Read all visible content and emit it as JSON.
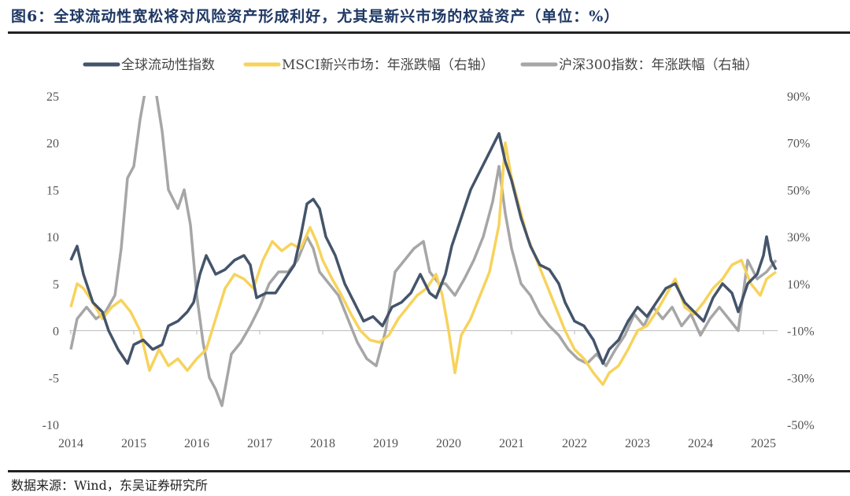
{
  "title": "图6：全球流动性宽松将对风险资产形成利好，尤其是新兴市场的权益资产（单位：%）",
  "source": "数据来源：Wind，东吴证券研究所",
  "chart_data": {
    "type": "line",
    "title": "图6：全球流动性宽松将对风险资产形成利好，尤其是新兴市场的权益资产（单位：%）",
    "legend_position": "top",
    "grid": false,
    "x_ticks": [
      "2014",
      "2015",
      "2016",
      "2017",
      "2018",
      "2019",
      "2020",
      "2021",
      "2022",
      "2023",
      "2024",
      "2025"
    ],
    "xlim": [
      2014,
      2025.25
    ],
    "left_axis": {
      "ylim": [
        -10,
        25
      ],
      "ticks": [
        "-10",
        "-5",
        "0",
        "5",
        "10",
        "15",
        "20",
        "25"
      ]
    },
    "right_axis": {
      "ylim": [
        -50,
        90
      ],
      "ticks": [
        "-50%",
        "-30%",
        "-10%",
        "10%",
        "30%",
        "50%",
        "70%",
        "90%"
      ]
    },
    "series": [
      {
        "name": "全球流动性指数",
        "axis": "left",
        "color": "#44546a",
        "points": [
          [
            2014.0,
            7.5
          ],
          [
            2014.1,
            9
          ],
          [
            2014.2,
            6
          ],
          [
            2014.35,
            3
          ],
          [
            2014.5,
            2
          ],
          [
            2014.6,
            0
          ],
          [
            2014.75,
            -2
          ],
          [
            2014.9,
            -3.5
          ],
          [
            2015.0,
            -1.5
          ],
          [
            2015.15,
            -1
          ],
          [
            2015.3,
            -2
          ],
          [
            2015.45,
            -1.5
          ],
          [
            2015.55,
            0.5
          ],
          [
            2015.7,
            1
          ],
          [
            2015.85,
            2
          ],
          [
            2015.95,
            3
          ],
          [
            2016.05,
            6
          ],
          [
            2016.15,
            8
          ],
          [
            2016.3,
            6
          ],
          [
            2016.45,
            6.5
          ],
          [
            2016.6,
            7.5
          ],
          [
            2016.75,
            8
          ],
          [
            2016.85,
            7
          ],
          [
            2016.95,
            3.5
          ],
          [
            2017.1,
            4
          ],
          [
            2017.25,
            4
          ],
          [
            2017.4,
            5.5
          ],
          [
            2017.55,
            7
          ],
          [
            2017.65,
            10
          ],
          [
            2017.75,
            13.5
          ],
          [
            2017.85,
            14
          ],
          [
            2017.95,
            13
          ],
          [
            2018.05,
            10
          ],
          [
            2018.2,
            8
          ],
          [
            2018.35,
            5
          ],
          [
            2018.5,
            3
          ],
          [
            2018.65,
            1
          ],
          [
            2018.8,
            1.5
          ],
          [
            2018.95,
            0.5
          ],
          [
            2019.1,
            2.5
          ],
          [
            2019.25,
            3
          ],
          [
            2019.4,
            4
          ],
          [
            2019.55,
            6
          ],
          [
            2019.7,
            4
          ],
          [
            2019.8,
            3.5
          ],
          [
            2019.95,
            6
          ],
          [
            2020.05,
            9
          ],
          [
            2020.2,
            12
          ],
          [
            2020.35,
            15
          ],
          [
            2020.5,
            17
          ],
          [
            2020.65,
            19
          ],
          [
            2020.8,
            21
          ],
          [
            2020.9,
            18
          ],
          [
            2021.0,
            16
          ],
          [
            2021.15,
            12
          ],
          [
            2021.3,
            9
          ],
          [
            2021.45,
            7
          ],
          [
            2021.6,
            6.5
          ],
          [
            2021.75,
            5
          ],
          [
            2021.85,
            3
          ],
          [
            2022.0,
            1
          ],
          [
            2022.15,
            0.5
          ],
          [
            2022.3,
            -1
          ],
          [
            2022.45,
            -3.5
          ],
          [
            2022.55,
            -2
          ],
          [
            2022.7,
            -1
          ],
          [
            2022.85,
            1
          ],
          [
            2023.0,
            2.5
          ],
          [
            2023.15,
            1.5
          ],
          [
            2023.3,
            3
          ],
          [
            2023.45,
            4.5
          ],
          [
            2023.6,
            5
          ],
          [
            2023.75,
            3
          ],
          [
            2023.9,
            2
          ],
          [
            2024.05,
            1
          ],
          [
            2024.2,
            3.5
          ],
          [
            2024.35,
            5
          ],
          [
            2024.5,
            4
          ],
          [
            2024.6,
            2
          ],
          [
            2024.75,
            5
          ],
          [
            2024.9,
            6
          ],
          [
            2025.0,
            8
          ],
          [
            2025.05,
            10
          ],
          [
            2025.12,
            7.5
          ],
          [
            2025.2,
            6.5
          ]
        ]
      },
      {
        "name": "MSCI新兴市场：年涨跌幅（右轴）",
        "axis": "right",
        "color": "#f7d35c",
        "points": [
          [
            2014.0,
            0
          ],
          [
            2014.1,
            10
          ],
          [
            2014.2,
            8
          ],
          [
            2014.35,
            2
          ],
          [
            2014.5,
            -5
          ],
          [
            2014.65,
            0
          ],
          [
            2014.8,
            3
          ],
          [
            2014.95,
            -2
          ],
          [
            2015.1,
            -10
          ],
          [
            2015.25,
            -27
          ],
          [
            2015.4,
            -18
          ],
          [
            2015.55,
            -25
          ],
          [
            2015.7,
            -22
          ],
          [
            2015.85,
            -27
          ],
          [
            2016.0,
            -22
          ],
          [
            2016.15,
            -18
          ],
          [
            2016.3,
            -5
          ],
          [
            2016.45,
            8
          ],
          [
            2016.6,
            14
          ],
          [
            2016.75,
            12
          ],
          [
            2016.9,
            8
          ],
          [
            2017.05,
            20
          ],
          [
            2017.2,
            28
          ],
          [
            2017.35,
            24
          ],
          [
            2017.5,
            27
          ],
          [
            2017.65,
            25
          ],
          [
            2017.8,
            34
          ],
          [
            2017.9,
            28
          ],
          [
            2018.0,
            20
          ],
          [
            2018.15,
            12
          ],
          [
            2018.3,
            5
          ],
          [
            2018.45,
            -3
          ],
          [
            2018.6,
            -10
          ],
          [
            2018.75,
            -14
          ],
          [
            2018.9,
            -15
          ],
          [
            2019.05,
            -12
          ],
          [
            2019.2,
            -5
          ],
          [
            2019.35,
            0
          ],
          [
            2019.5,
            5
          ],
          [
            2019.65,
            8
          ],
          [
            2019.8,
            14
          ],
          [
            2019.9,
            5
          ],
          [
            2020.0,
            -10
          ],
          [
            2020.1,
            -28
          ],
          [
            2020.2,
            -12
          ],
          [
            2020.35,
            -5
          ],
          [
            2020.5,
            5
          ],
          [
            2020.65,
            15
          ],
          [
            2020.8,
            35
          ],
          [
            2020.9,
            70
          ],
          [
            2021.0,
            55
          ],
          [
            2021.1,
            45
          ],
          [
            2021.25,
            30
          ],
          [
            2021.4,
            20
          ],
          [
            2021.55,
            10
          ],
          [
            2021.7,
            0
          ],
          [
            2021.85,
            -10
          ],
          [
            2022.0,
            -18
          ],
          [
            2022.15,
            -22
          ],
          [
            2022.3,
            -28
          ],
          [
            2022.45,
            -33
          ],
          [
            2022.55,
            -28
          ],
          [
            2022.7,
            -25
          ],
          [
            2022.85,
            -18
          ],
          [
            2023.0,
            -10
          ],
          [
            2023.15,
            -8
          ],
          [
            2023.3,
            -2
          ],
          [
            2023.45,
            5
          ],
          [
            2023.6,
            12
          ],
          [
            2023.75,
            0
          ],
          [
            2023.9,
            -3
          ],
          [
            2024.05,
            2
          ],
          [
            2024.2,
            8
          ],
          [
            2024.35,
            12
          ],
          [
            2024.5,
            18
          ],
          [
            2024.65,
            20
          ],
          [
            2024.8,
            10
          ],
          [
            2024.95,
            5
          ],
          [
            2025.05,
            12
          ],
          [
            2025.2,
            15
          ]
        ]
      },
      {
        "name": "沪深300指数：年涨跌幅（右轴）",
        "axis": "right",
        "color": "#a6a6a6",
        "points": [
          [
            2014.0,
            -18
          ],
          [
            2014.1,
            -5
          ],
          [
            2014.25,
            0
          ],
          [
            2014.4,
            -5
          ],
          [
            2014.55,
            -2
          ],
          [
            2014.7,
            5
          ],
          [
            2014.8,
            25
          ],
          [
            2014.9,
            55
          ],
          [
            2015.0,
            60
          ],
          [
            2015.1,
            80
          ],
          [
            2015.2,
            95
          ],
          [
            2015.35,
            92
          ],
          [
            2015.45,
            75
          ],
          [
            2015.55,
            50
          ],
          [
            2015.7,
            42
          ],
          [
            2015.8,
            50
          ],
          [
            2015.9,
            35
          ],
          [
            2016.0,
            5
          ],
          [
            2016.1,
            -15
          ],
          [
            2016.2,
            -30
          ],
          [
            2016.3,
            -35
          ],
          [
            2016.4,
            -42
          ],
          [
            2016.55,
            -20
          ],
          [
            2016.7,
            -15
          ],
          [
            2016.85,
            -8
          ],
          [
            2017.0,
            0
          ],
          [
            2017.15,
            10
          ],
          [
            2017.3,
            15
          ],
          [
            2017.45,
            15
          ],
          [
            2017.6,
            20
          ],
          [
            2017.75,
            30
          ],
          [
            2017.85,
            25
          ],
          [
            2017.95,
            15
          ],
          [
            2018.1,
            10
          ],
          [
            2018.25,
            5
          ],
          [
            2018.4,
            -5
          ],
          [
            2018.55,
            -15
          ],
          [
            2018.7,
            -22
          ],
          [
            2018.85,
            -25
          ],
          [
            2019.0,
            -10
          ],
          [
            2019.15,
            15
          ],
          [
            2019.3,
            20
          ],
          [
            2019.45,
            25
          ],
          [
            2019.6,
            28
          ],
          [
            2019.7,
            15
          ],
          [
            2019.85,
            10
          ],
          [
            2019.95,
            10
          ],
          [
            2020.1,
            5
          ],
          [
            2020.25,
            12
          ],
          [
            2020.4,
            20
          ],
          [
            2020.55,
            30
          ],
          [
            2020.7,
            45
          ],
          [
            2020.8,
            60
          ],
          [
            2020.9,
            40
          ],
          [
            2021.0,
            25
          ],
          [
            2021.15,
            10
          ],
          [
            2021.3,
            5
          ],
          [
            2021.45,
            -3
          ],
          [
            2021.6,
            -8
          ],
          [
            2021.75,
            -12
          ],
          [
            2021.9,
            -18
          ],
          [
            2022.05,
            -22
          ],
          [
            2022.2,
            -24
          ],
          [
            2022.35,
            -20
          ],
          [
            2022.5,
            -25
          ],
          [
            2022.65,
            -18
          ],
          [
            2022.8,
            -12
          ],
          [
            2022.95,
            -3
          ],
          [
            2023.1,
            -8
          ],
          [
            2023.25,
            0
          ],
          [
            2023.4,
            -5
          ],
          [
            2023.55,
            0
          ],
          [
            2023.7,
            -8
          ],
          [
            2023.85,
            -3
          ],
          [
            2024.0,
            -12
          ],
          [
            2024.15,
            -5
          ],
          [
            2024.3,
            0
          ],
          [
            2024.45,
            -5
          ],
          [
            2024.6,
            -10
          ],
          [
            2024.75,
            20
          ],
          [
            2024.9,
            12
          ],
          [
            2025.05,
            15
          ],
          [
            2025.2,
            20
          ]
        ]
      }
    ]
  }
}
